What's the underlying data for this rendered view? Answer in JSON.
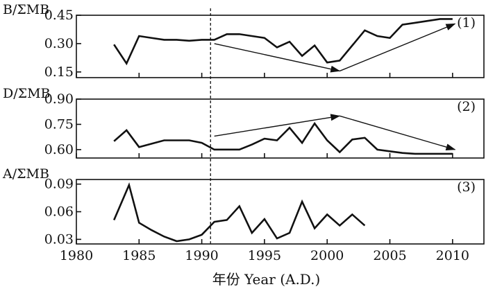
{
  "chart_data": {
    "type": "line",
    "xlabel": "年份 Year (A.D.)",
    "x_ticks": [
      1980,
      1985,
      1990,
      1995,
      2000,
      2005,
      2010
    ],
    "xlim": [
      1980,
      2012.5
    ],
    "reference_line_year": 1990.7,
    "panels": [
      {
        "ylabel": "B/ΣMB",
        "tag": "(1)",
        "ylim": [
          0.12,
          0.45
        ],
        "y_ticks": [
          0.15,
          0.3,
          0.45
        ],
        "tick_labels": [
          "0.15",
          "0.30",
          "0.45"
        ],
        "series": [
          {
            "x": [
              1983,
              1984,
              1985,
              1986,
              1987,
              1988,
              1989,
              1990,
              1991,
              1992,
              1993,
              1994,
              1995,
              1996,
              1997,
              1998,
              1999,
              2000,
              2001,
              2002,
              2003,
              2004,
              2005,
              2006,
              2007,
              2008,
              2009,
              2010
            ],
            "y": [
              0.295,
              0.195,
              0.34,
              0.33,
              0.32,
              0.32,
              0.315,
              0.32,
              0.32,
              0.35,
              0.35,
              0.34,
              0.33,
              0.28,
              0.31,
              0.235,
              0.29,
              0.2,
              0.21,
              0.29,
              0.37,
              0.34,
              0.33,
              0.4,
              0.41,
              0.42,
              0.43,
              0.43
            ]
          }
        ],
        "trend_arrows": [
          {
            "from": [
              1991,
              0.3
            ],
            "to": [
              2001,
              0.155
            ]
          },
          {
            "from": [
              2001,
              0.155
            ],
            "to": [
              2010.2,
              0.405
            ]
          }
        ]
      },
      {
        "ylabel": "D/ΣMB",
        "tag": "(2)",
        "ylim": [
          0.55,
          0.9
        ],
        "y_ticks": [
          0.6,
          0.75,
          0.9
        ],
        "tick_labels": [
          "0.60",
          "0.75",
          "0.90"
        ],
        "series": [
          {
            "x": [
              1983,
              1984,
              1985,
              1986,
              1987,
              1988,
              1989,
              1990,
              1991,
              1992,
              1993,
              1994,
              1995,
              1996,
              1997,
              1998,
              1999,
              2000,
              2001,
              2002,
              2003,
              2004,
              2005,
              2006,
              2007,
              2008,
              2009,
              2010
            ],
            "y": [
              0.65,
              0.715,
              0.615,
              0.635,
              0.655,
              0.655,
              0.655,
              0.64,
              0.6,
              0.6,
              0.6,
              0.63,
              0.665,
              0.655,
              0.73,
              0.64,
              0.755,
              0.655,
              0.585,
              0.66,
              0.67,
              0.6,
              0.59,
              0.58,
              0.575,
              0.575,
              0.575,
              0.575
            ]
          }
        ],
        "trend_arrows": [
          {
            "from": [
              1991,
              0.68
            ],
            "to": [
              2001,
              0.8
            ]
          },
          {
            "from": [
              2001,
              0.8
            ],
            "to": [
              2010.2,
              0.6
            ]
          }
        ]
      },
      {
        "ylabel": "A/ΣMB",
        "tag": "(3)",
        "ylim": [
          0.025,
          0.095
        ],
        "y_ticks": [
          0.03,
          0.06,
          0.09
        ],
        "tick_labels": [
          "0.03",
          "0.06",
          "0.09"
        ],
        "series": [
          {
            "x": [
              1983,
              1984.2,
              1985,
              1986,
              1987,
              1988,
              1989,
              1990,
              1991,
              1992,
              1993,
              1994,
              1995,
              1996,
              1997,
              1998,
              1999,
              2000,
              2001,
              2002,
              2003
            ],
            "y": [
              0.051,
              0.089,
              0.048,
              0.04,
              0.033,
              0.028,
              0.03,
              0.035,
              0.049,
              0.051,
              0.066,
              0.037,
              0.052,
              0.031,
              0.037,
              0.071,
              0.042,
              0.057,
              0.045,
              0.057,
              0.045
            ]
          }
        ],
        "trend_arrows": []
      }
    ]
  }
}
